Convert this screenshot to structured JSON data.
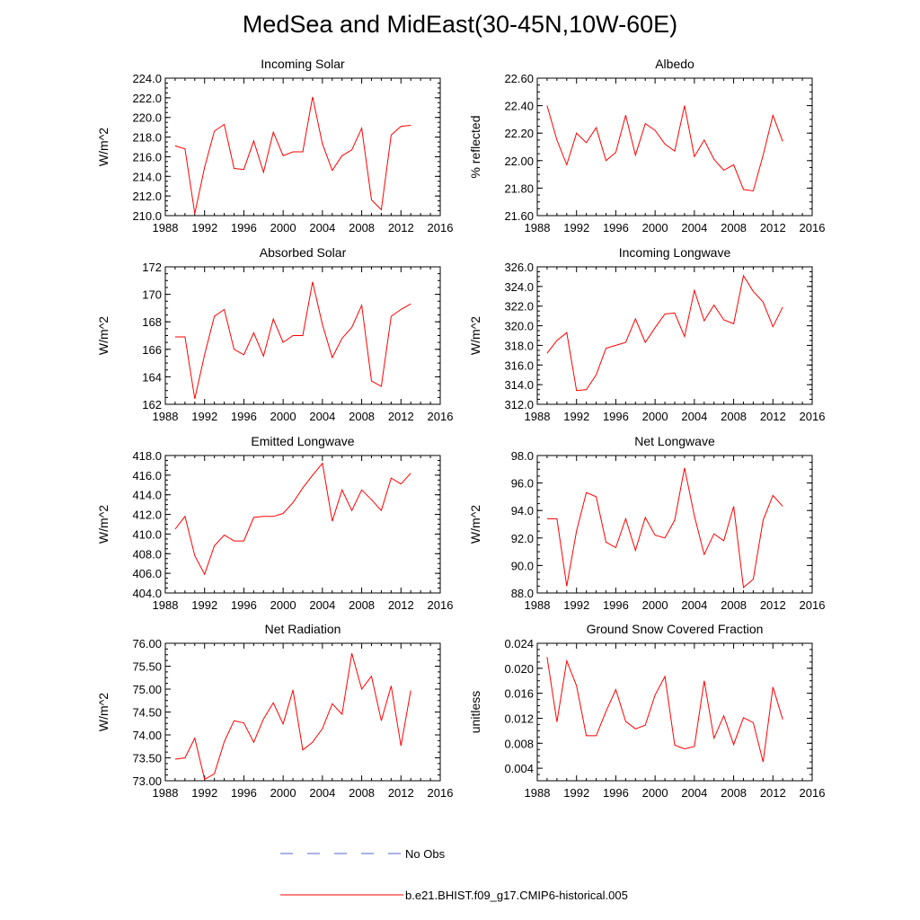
{
  "figure": {
    "title": "MedSea and MidEast(30-45N,10W-60E)"
  },
  "legend": {
    "obs_label": "No Obs",
    "obs_color": "#5566cc",
    "model_label": "b.e21.BHIST.f09_g17.CMIP6-historical.005",
    "model_color": "#ff0000"
  },
  "chart_data": [
    {
      "type": "line",
      "title": "Incoming Solar",
      "xlabel": "",
      "ylabel": "W/m^2",
      "xlim": [
        1988,
        2016
      ],
      "xticks": [
        "1988",
        "1992",
        "1996",
        "2000",
        "2004",
        "2008",
        "2012",
        "2016"
      ],
      "ylim": [
        210,
        224
      ],
      "yticks": [
        "210.0",
        "212.0",
        "214.0",
        "216.0",
        "218.0",
        "220.0",
        "222.0",
        "224.0"
      ],
      "x": [
        1989,
        1990,
        1991,
        1992,
        1993,
        1994,
        1995,
        1996,
        1997,
        1998,
        1999,
        2000,
        2001,
        2002,
        2003,
        2004,
        2005,
        2006,
        2007,
        2008,
        2009,
        2010,
        2011,
        2012,
        2013
      ],
      "series": [
        {
          "values": [
            217.1,
            216.8,
            210.2,
            214.9,
            218.6,
            219.3,
            214.8,
            214.7,
            217.6,
            214.4,
            218.5,
            216.1,
            216.5,
            216.5,
            222.1,
            217.3,
            214.6,
            216.1,
            216.7,
            218.9,
            211.6,
            210.6,
            218.2,
            219.1,
            219.2
          ]
        }
      ]
    },
    {
      "type": "line",
      "title": "Albedo",
      "xlabel": "",
      "ylabel": "% reflected",
      "xlim": [
        1988,
        2016
      ],
      "xticks": [
        "1988",
        "1992",
        "1996",
        "2000",
        "2004",
        "2008",
        "2012",
        "2016"
      ],
      "ylim": [
        21.6,
        22.6
      ],
      "yticks": [
        "21.60",
        "21.80",
        "22.00",
        "22.20",
        "22.40",
        "22.60"
      ],
      "x": [
        1989,
        1990,
        1991,
        1992,
        1993,
        1994,
        1995,
        1996,
        1997,
        1998,
        1999,
        2000,
        2001,
        2002,
        2003,
        2004,
        2005,
        2006,
        2007,
        2008,
        2009,
        2010,
        2011,
        2012,
        2013
      ],
      "series": [
        {
          "values": [
            22.4,
            22.15,
            21.97,
            22.2,
            22.13,
            22.24,
            22.0,
            22.06,
            22.33,
            22.04,
            22.27,
            22.22,
            22.12,
            22.07,
            22.4,
            22.03,
            22.15,
            22.01,
            21.93,
            21.97,
            21.79,
            21.78,
            22.04,
            22.33,
            22.14
          ]
        }
      ]
    },
    {
      "type": "line",
      "title": "Absorbed Solar",
      "xlabel": "",
      "ylabel": "W/m^2",
      "xlim": [
        1988,
        2016
      ],
      "xticks": [
        "1988",
        "1992",
        "1996",
        "2000",
        "2004",
        "2008",
        "2012",
        "2016"
      ],
      "ylim": [
        162,
        172
      ],
      "yticks": [
        "162",
        "164",
        "166",
        "168",
        "170",
        "172"
      ],
      "x": [
        1989,
        1990,
        1991,
        1992,
        1993,
        1994,
        1995,
        1996,
        1997,
        1998,
        1999,
        2000,
        2001,
        2002,
        2003,
        2004,
        2005,
        2006,
        2007,
        2008,
        2009,
        2010,
        2011,
        2012,
        2013
      ],
      "series": [
        {
          "values": [
            166.9,
            166.9,
            162.4,
            165.6,
            168.4,
            168.9,
            166.0,
            165.6,
            167.2,
            165.5,
            168.2,
            166.5,
            167.0,
            167.0,
            170.9,
            167.8,
            165.4,
            166.8,
            167.6,
            169.2,
            163.7,
            163.3,
            168.4,
            168.9,
            169.3
          ]
        }
      ]
    },
    {
      "type": "line",
      "title": "Incoming Longwave",
      "xlabel": "",
      "ylabel": "W/m^2",
      "xlim": [
        1988,
        2016
      ],
      "xticks": [
        "1988",
        "1992",
        "1996",
        "2000",
        "2004",
        "2008",
        "2012",
        "2016"
      ],
      "ylim": [
        312,
        326
      ],
      "yticks": [
        "312.0",
        "314.0",
        "316.0",
        "318.0",
        "320.0",
        "322.0",
        "324.0",
        "326.0"
      ],
      "x": [
        1989,
        1990,
        1991,
        1992,
        1993,
        1994,
        1995,
        1996,
        1997,
        1998,
        1999,
        2000,
        2001,
        2002,
        2003,
        2004,
        2005,
        2006,
        2007,
        2008,
        2009,
        2010,
        2011,
        2012,
        2013
      ],
      "series": [
        {
          "values": [
            317.2,
            318.5,
            319.3,
            313.4,
            313.5,
            315.0,
            317.7,
            318.0,
            318.3,
            320.7,
            318.3,
            319.8,
            321.2,
            321.3,
            318.9,
            323.6,
            320.5,
            322.1,
            320.6,
            320.2,
            325.1,
            323.5,
            322.4,
            319.9,
            321.9
          ]
        }
      ]
    },
    {
      "type": "line",
      "title": "Emitted Longwave",
      "xlabel": "",
      "ylabel": "W/m^2",
      "xlim": [
        1988,
        2016
      ],
      "xticks": [
        "1988",
        "1992",
        "1996",
        "2000",
        "2004",
        "2008",
        "2012",
        "2016"
      ],
      "ylim": [
        404,
        418
      ],
      "yticks": [
        "404.0",
        "406.0",
        "408.0",
        "410.0",
        "412.0",
        "414.0",
        "416.0",
        "418.0"
      ],
      "x": [
        1989,
        1990,
        1991,
        1992,
        1993,
        1994,
        1995,
        1996,
        1997,
        1998,
        1999,
        2000,
        2001,
        2002,
        2003,
        2004,
        2005,
        2006,
        2007,
        2008,
        2009,
        2010,
        2011,
        2012,
        2013
      ],
      "series": [
        {
          "values": [
            410.5,
            411.8,
            407.8,
            405.9,
            408.8,
            409.9,
            409.3,
            409.3,
            411.7,
            411.8,
            411.8,
            412.1,
            413.2,
            414.7,
            416.0,
            417.2,
            411.3,
            414.5,
            412.4,
            414.5,
            413.5,
            412.4,
            415.7,
            415.1,
            416.2
          ]
        }
      ]
    },
    {
      "type": "line",
      "title": "Net Longwave",
      "xlabel": "",
      "ylabel": "W/m^2",
      "xlim": [
        1988,
        2016
      ],
      "xticks": [
        "1988",
        "1992",
        "1996",
        "2000",
        "2004",
        "2008",
        "2012",
        "2016"
      ],
      "ylim": [
        88,
        98
      ],
      "yticks": [
        "88.0",
        "90.0",
        "92.0",
        "94.0",
        "96.0",
        "98.0"
      ],
      "x": [
        1989,
        1990,
        1991,
        1992,
        1993,
        1994,
        1995,
        1996,
        1997,
        1998,
        1999,
        2000,
        2001,
        2002,
        2003,
        2004,
        2005,
        2006,
        2007,
        2008,
        2009,
        2010,
        2011,
        2012,
        2013
      ],
      "series": [
        {
          "values": [
            93.4,
            93.4,
            88.5,
            92.5,
            95.3,
            95.0,
            91.7,
            91.3,
            93.4,
            91.1,
            93.5,
            92.2,
            92.0,
            93.3,
            97.1,
            93.6,
            90.8,
            92.3,
            91.8,
            94.3,
            88.4,
            89.0,
            93.3,
            95.1,
            94.3
          ]
        }
      ]
    },
    {
      "type": "line",
      "title": "Net Radiation",
      "xlabel": "",
      "ylabel": "W/m^2",
      "xlim": [
        1988,
        2016
      ],
      "xticks": [
        "1988",
        "1992",
        "1996",
        "2000",
        "2004",
        "2008",
        "2012",
        "2016"
      ],
      "ylim": [
        73,
        76
      ],
      "yticks": [
        "73.00",
        "73.50",
        "74.00",
        "74.50",
        "75.00",
        "75.50",
        "76.00"
      ],
      "x": [
        1989,
        1990,
        1991,
        1992,
        1993,
        1994,
        1995,
        1996,
        1997,
        1998,
        1999,
        2000,
        2001,
        2002,
        2003,
        2004,
        2005,
        2006,
        2007,
        2008,
        2009,
        2010,
        2011,
        2012,
        2013
      ],
      "series": [
        {
          "values": [
            73.47,
            73.5,
            73.93,
            73.03,
            73.15,
            73.85,
            74.31,
            74.26,
            73.84,
            74.35,
            74.7,
            74.24,
            74.98,
            73.67,
            73.84,
            74.14,
            74.68,
            74.45,
            75.78,
            75.0,
            75.28,
            74.31,
            75.07,
            73.76,
            74.97
          ]
        }
      ]
    },
    {
      "type": "line",
      "title": "Ground Snow Covered Fraction",
      "xlabel": "",
      "ylabel": "unitless",
      "xlim": [
        1988,
        2016
      ],
      "xticks": [
        "1988",
        "1992",
        "1996",
        "2000",
        "2004",
        "2008",
        "2012",
        "2016"
      ],
      "ylim": [
        0.002,
        0.024
      ],
      "yticks": [
        "0.004",
        "0.008",
        "0.012",
        "0.016",
        "0.020",
        "0.024"
      ],
      "x": [
        1989,
        1990,
        1991,
        1992,
        1993,
        1994,
        1995,
        1996,
        1997,
        1998,
        1999,
        2000,
        2001,
        2002,
        2003,
        2004,
        2005,
        2006,
        2007,
        2008,
        2009,
        2010,
        2011,
        2012,
        2013
      ],
      "series": [
        {
          "values": [
            0.0218,
            0.0114,
            0.0212,
            0.0172,
            0.0092,
            0.0092,
            0.0131,
            0.0166,
            0.0115,
            0.0103,
            0.0109,
            0.0157,
            0.0187,
            0.0077,
            0.0071,
            0.0075,
            0.018,
            0.0088,
            0.0124,
            0.0078,
            0.0121,
            0.0113,
            0.005,
            0.017,
            0.0118
          ]
        }
      ]
    }
  ]
}
